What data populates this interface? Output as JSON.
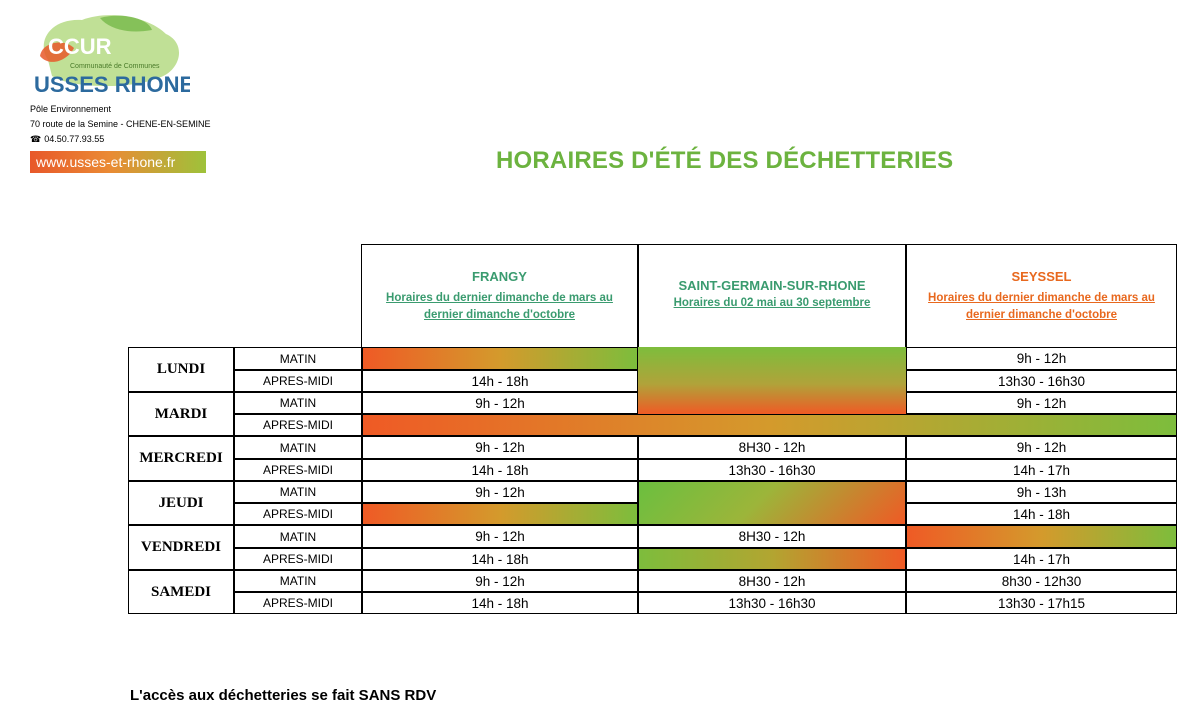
{
  "header": {
    "logo_text_top": "CCUR",
    "logo_text_main": "USSES RHONE",
    "logo_text_arc": "Communauté de Communes",
    "org_name": "Pôle Environnement",
    "address": "70 route de la Semine - CHENE-EN-SEMINE",
    "phone": "04.50.77.93.55",
    "website": "www.usses-et-rhone.fr"
  },
  "title": "HORAIRES D'ÉTÉ DES DÉCHETTERIES",
  "sites": [
    {
      "name": "FRANGY",
      "sub": "Horaires du dernier dimanche de mars au dernier dimanche d'octobre",
      "color": "#3a9b6f"
    },
    {
      "name": "SAINT-GERMAIN-SUR-RHONE",
      "sub": "Horaires du 02 mai au 30 septembre",
      "color": "#3a9b6f"
    },
    {
      "name": "SEYSSEL",
      "sub": "Horaires du dernier dimanche de mars au dernier dimanche d'octobre",
      "color": "#e8681e"
    }
  ],
  "days": [
    "LUNDI",
    "MARDI",
    "MERCREDI",
    "JEUDI",
    "VENDREDI",
    "SAMEDI"
  ],
  "periods": [
    "MATIN",
    "APRES-MIDI"
  ],
  "schedule": {
    "lundi_matin": [
      "",
      "",
      "9h - 12h"
    ],
    "lundi_aprem": [
      "14h - 18h",
      "",
      "13h30 - 16h30"
    ],
    "mardi_matin": [
      "9h - 12h",
      "",
      "9h - 12h"
    ],
    "mardi_aprem": [
      "",
      "",
      ""
    ],
    "mercredi_matin": [
      "9h - 12h",
      "8H30 - 12h",
      "9h - 12h"
    ],
    "mercredi_aprem": [
      "14h - 18h",
      "13h30 - 16h30",
      "14h - 17h"
    ],
    "jeudi_matin": [
      "9h - 12h",
      "",
      "9h - 13h"
    ],
    "jeudi_aprem": [
      "",
      "",
      "14h - 18h"
    ],
    "vendredi_matin": [
      "9h - 12h",
      "8H30 - 12h",
      ""
    ],
    "vendredi_aprem": [
      "14h - 18h",
      "",
      "14h - 17h"
    ],
    "samedi_matin": [
      "9h - 12h",
      "8H30 - 12h",
      "8h30 - 12h30"
    ],
    "samedi_aprem": [
      "14h - 18h",
      "13h30 - 16h30",
      "13h30 - 17h15"
    ]
  },
  "footer": "L'accès aux déchetteries se fait SANS RDV",
  "colors": {
    "green": "#6cb33f",
    "orange": "#ef5a25",
    "title_green": "#6cb33f"
  }
}
